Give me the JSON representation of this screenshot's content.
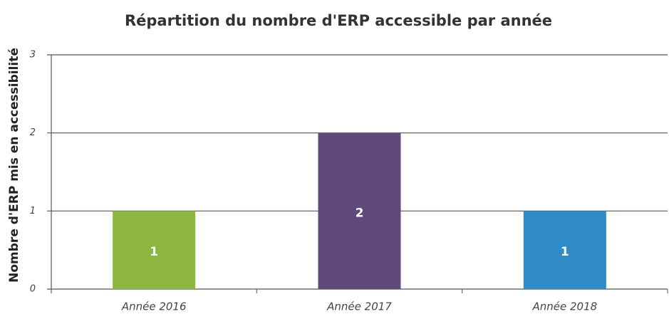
{
  "chart_data": {
    "type": "bar",
    "title": "Répartition du nombre d'ERP accessible par année",
    "y_label": "Nombre d'ERP mis en accessibilité",
    "categories": [
      "Année 2016",
      "Année 2017",
      "Année 2018"
    ],
    "values": [
      1,
      2,
      1
    ],
    "colors": [
      "#8db63f",
      "#604a7b",
      "#2e8bc6"
    ],
    "ylim": [
      0,
      3
    ],
    "yticks": [
      0,
      1,
      2,
      3
    ],
    "grid": true
  }
}
